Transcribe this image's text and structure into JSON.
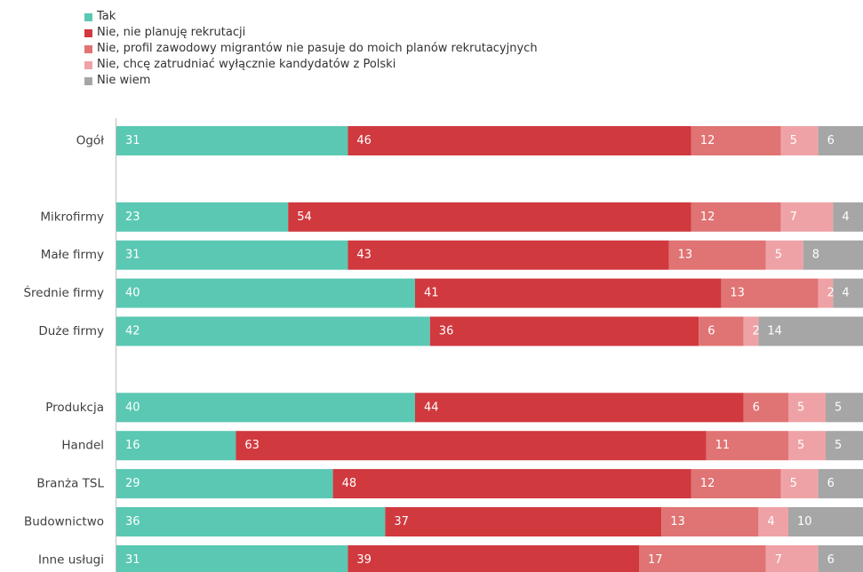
{
  "colors": {
    "tak": "#5ac8b3",
    "nie_planuje": "#d0393e",
    "nie_profil": "#e07373",
    "nie_polska": "#efa2a6",
    "nie_wiem": "#a6a6a6",
    "axis": "#bfbfbf",
    "label_dark": "#404040",
    "value_text": "#ffffff"
  },
  "chart_data": {
    "type": "bar",
    "orientation": "horizontal",
    "stacked": true,
    "legend_position": "top-left",
    "grid": false,
    "xlim": [
      0,
      100
    ],
    "categories": [
      "Ogół",
      "",
      "Mikrofirmy",
      "Małe firmy",
      "Średnie firmy",
      "Duże firmy",
      "",
      "Produkcja",
      "Handel",
      "Branża TSL",
      "Budownictwo",
      "Inne usługi"
    ],
    "series": [
      {
        "key": "tak",
        "name": "Tak",
        "values": [
          31,
          null,
          23,
          31,
          40,
          42,
          null,
          40,
          16,
          29,
          36,
          31
        ]
      },
      {
        "key": "nie_planuje",
        "name": "Nie, nie planuję rekrutacji",
        "values": [
          46,
          null,
          54,
          43,
          41,
          36,
          null,
          44,
          63,
          48,
          37,
          39
        ]
      },
      {
        "key": "nie_profil",
        "name": "Nie, profil zawodowy migrantów nie pasuje do moich planów rekrutacyjnych",
        "values": [
          12,
          null,
          12,
          13,
          13,
          6,
          null,
          6,
          11,
          12,
          13,
          17
        ]
      },
      {
        "key": "nie_polska",
        "name": "Nie, chcę zatrudniać wyłącznie kandydatów z Polski",
        "values": [
          5,
          null,
          7,
          5,
          2,
          2,
          null,
          5,
          5,
          5,
          4,
          7
        ]
      },
      {
        "key": "nie_wiem",
        "name": "Nie wiem",
        "values": [
          6,
          null,
          4,
          8,
          4,
          14,
          null,
          5,
          5,
          6,
          10,
          6
        ]
      }
    ]
  }
}
